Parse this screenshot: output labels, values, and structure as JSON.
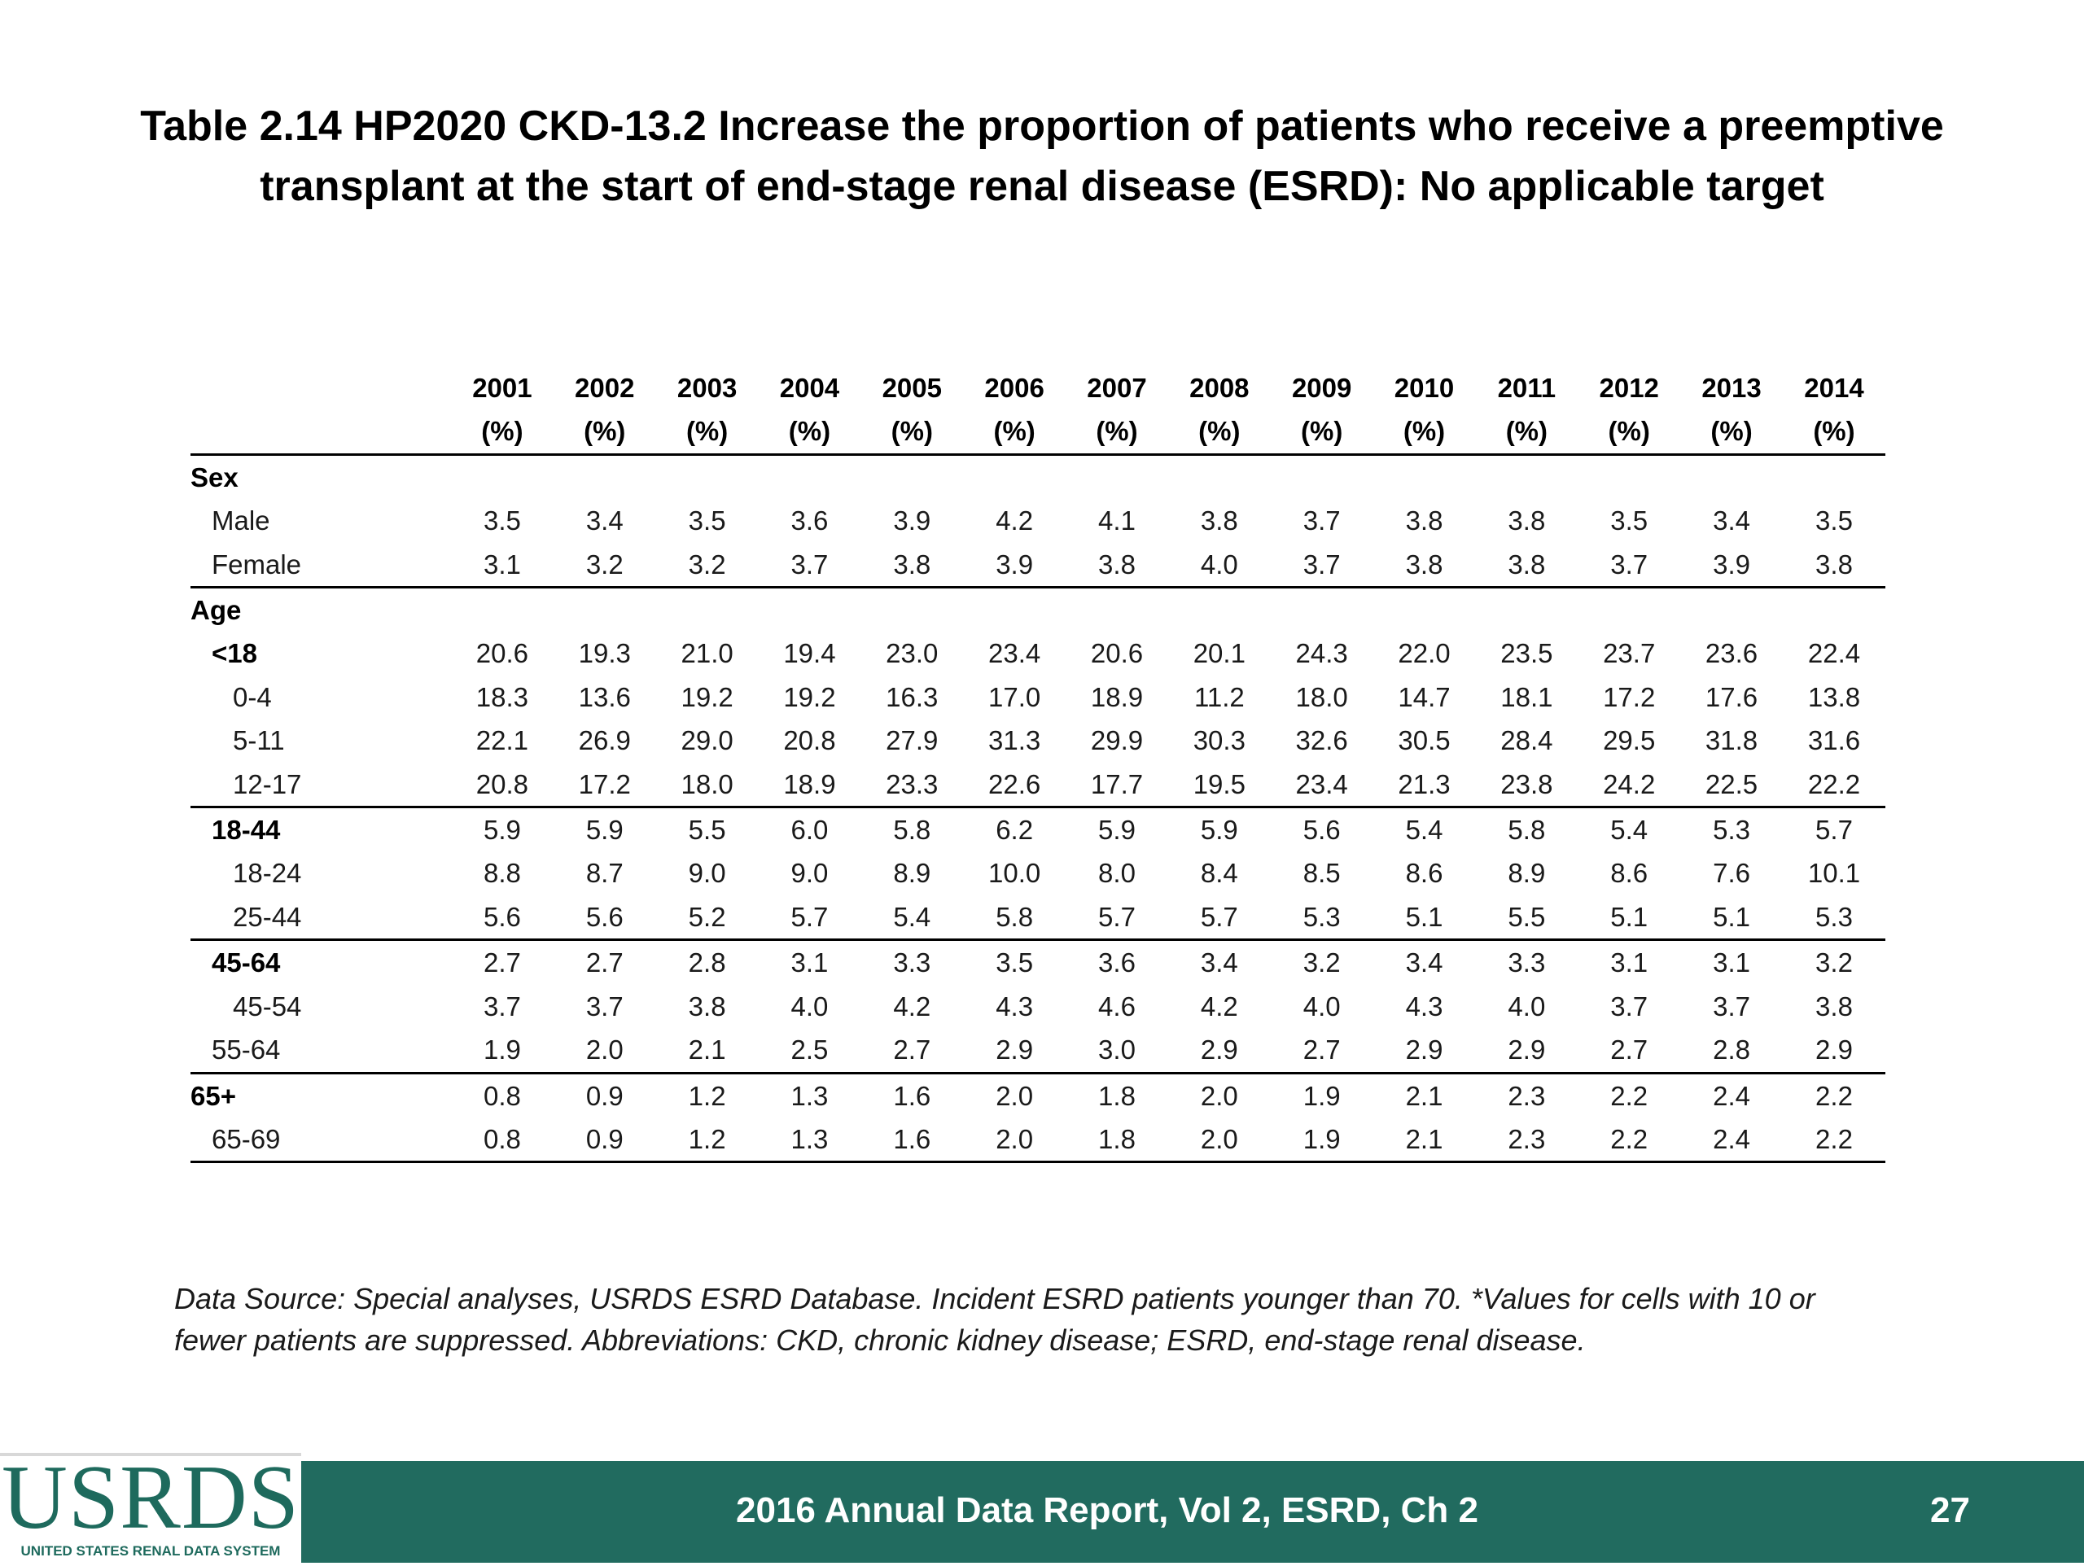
{
  "title": {
    "line1": "Table 2.14  HP2020 CKD-13.2 Increase the proportion of patients who receive a preemptive",
    "line2": "transplant at the start of end-stage renal disease (ESRD): No applicable target"
  },
  "table": {
    "years": [
      "2001",
      "2002",
      "2003",
      "2004",
      "2005",
      "2006",
      "2007",
      "2008",
      "2009",
      "2010",
      "2011",
      "2012",
      "2013",
      "2014"
    ],
    "unit": "(%)",
    "rows": [
      {
        "label": "Sex",
        "level": 0,
        "bold": true,
        "values": []
      },
      {
        "label": "Male",
        "level": 1,
        "bold": false,
        "values": [
          "3.5",
          "3.4",
          "3.5",
          "3.6",
          "3.9",
          "4.2",
          "4.1",
          "3.8",
          "3.7",
          "3.8",
          "3.8",
          "3.5",
          "3.4",
          "3.5"
        ]
      },
      {
        "label": "Female",
        "level": 1,
        "bold": false,
        "sep": true,
        "values": [
          "3.1",
          "3.2",
          "3.2",
          "3.7",
          "3.8",
          "3.9",
          "3.8",
          "4.0",
          "3.7",
          "3.8",
          "3.8",
          "3.7",
          "3.9",
          "3.8"
        ]
      },
      {
        "label": "Age",
        "level": 0,
        "bold": true,
        "values": []
      },
      {
        "label": "<18",
        "level": 1,
        "bold": true,
        "values": [
          "20.6",
          "19.3",
          "21.0",
          "19.4",
          "23.0",
          "23.4",
          "20.6",
          "20.1",
          "24.3",
          "22.0",
          "23.5",
          "23.7",
          "23.6",
          "22.4"
        ]
      },
      {
        "label": "0-4",
        "level": 2,
        "bold": false,
        "values": [
          "18.3",
          "13.6",
          "19.2",
          "19.2",
          "16.3",
          "17.0",
          "18.9",
          "11.2",
          "18.0",
          "14.7",
          "18.1",
          "17.2",
          "17.6",
          "13.8"
        ]
      },
      {
        "label": "5-11",
        "level": 2,
        "bold": false,
        "values": [
          "22.1",
          "26.9",
          "29.0",
          "20.8",
          "27.9",
          "31.3",
          "29.9",
          "30.3",
          "32.6",
          "30.5",
          "28.4",
          "29.5",
          "31.8",
          "31.6"
        ]
      },
      {
        "label": "12-17",
        "level": 2,
        "bold": false,
        "sep": true,
        "values": [
          "20.8",
          "17.2",
          "18.0",
          "18.9",
          "23.3",
          "22.6",
          "17.7",
          "19.5",
          "23.4",
          "21.3",
          "23.8",
          "24.2",
          "22.5",
          "22.2"
        ]
      },
      {
        "label": "18-44",
        "level": 1,
        "bold": true,
        "values": [
          "5.9",
          "5.9",
          "5.5",
          "6.0",
          "5.8",
          "6.2",
          "5.9",
          "5.9",
          "5.6",
          "5.4",
          "5.8",
          "5.4",
          "5.3",
          "5.7"
        ]
      },
      {
        "label": "18-24",
        "level": 2,
        "bold": false,
        "values": [
          "8.8",
          "8.7",
          "9.0",
          "9.0",
          "8.9",
          "10.0",
          "8.0",
          "8.4",
          "8.5",
          "8.6",
          "8.9",
          "8.6",
          "7.6",
          "10.1"
        ]
      },
      {
        "label": "25-44",
        "level": 2,
        "bold": false,
        "sep": true,
        "values": [
          "5.6",
          "5.6",
          "5.2",
          "5.7",
          "5.4",
          "5.8",
          "5.7",
          "5.7",
          "5.3",
          "5.1",
          "5.5",
          "5.1",
          "5.1",
          "5.3"
        ]
      },
      {
        "label": "45-64",
        "level": 1,
        "bold": true,
        "values": [
          "2.7",
          "2.7",
          "2.8",
          "3.1",
          "3.3",
          "3.5",
          "3.6",
          "3.4",
          "3.2",
          "3.4",
          "3.3",
          "3.1",
          "3.1",
          "3.2"
        ]
      },
      {
        "label": "45-54",
        "level": 2,
        "bold": false,
        "values": [
          "3.7",
          "3.7",
          "3.8",
          "4.0",
          "4.2",
          "4.3",
          "4.6",
          "4.2",
          "4.0",
          "4.3",
          "4.0",
          "3.7",
          "3.7",
          "3.8"
        ]
      },
      {
        "label": "55-64",
        "level": 1,
        "bold": false,
        "sep": true,
        "values": [
          "1.9",
          "2.0",
          "2.1",
          "2.5",
          "2.7",
          "2.9",
          "3.0",
          "2.9",
          "2.7",
          "2.9",
          "2.9",
          "2.7",
          "2.8",
          "2.9"
        ]
      },
      {
        "label": "65+",
        "level": 0,
        "bold": true,
        "values": [
          "0.8",
          "0.9",
          "1.2",
          "1.3",
          "1.6",
          "2.0",
          "1.8",
          "2.0",
          "1.9",
          "2.1",
          "2.3",
          "2.2",
          "2.4",
          "2.2"
        ]
      },
      {
        "label": "65-69",
        "level": 1,
        "bold": false,
        "sep": true,
        "values": [
          "0.8",
          "0.9",
          "1.2",
          "1.3",
          "1.6",
          "2.0",
          "1.8",
          "2.0",
          "1.9",
          "2.1",
          "2.3",
          "2.2",
          "2.4",
          "2.2"
        ]
      }
    ]
  },
  "source": {
    "line1": "Data Source: Special analyses, USRDS ESRD Database. Incident ESRD patients younger than 70. *Values for cells with 10 or",
    "line2": "fewer patients are suppressed. Abbreviations: CKD, chronic kidney disease; ESRD, end-stage renal disease."
  },
  "footer": {
    "logo_text": "USRDS",
    "logo_subtext": "UNITED STATES RENAL DATA SYSTEM",
    "report": "2016 Annual Data Report, Vol 2, ESRD, Ch 2",
    "page": "27",
    "bar_color": "#216b5f",
    "logo_color": "#1e6a5d"
  }
}
